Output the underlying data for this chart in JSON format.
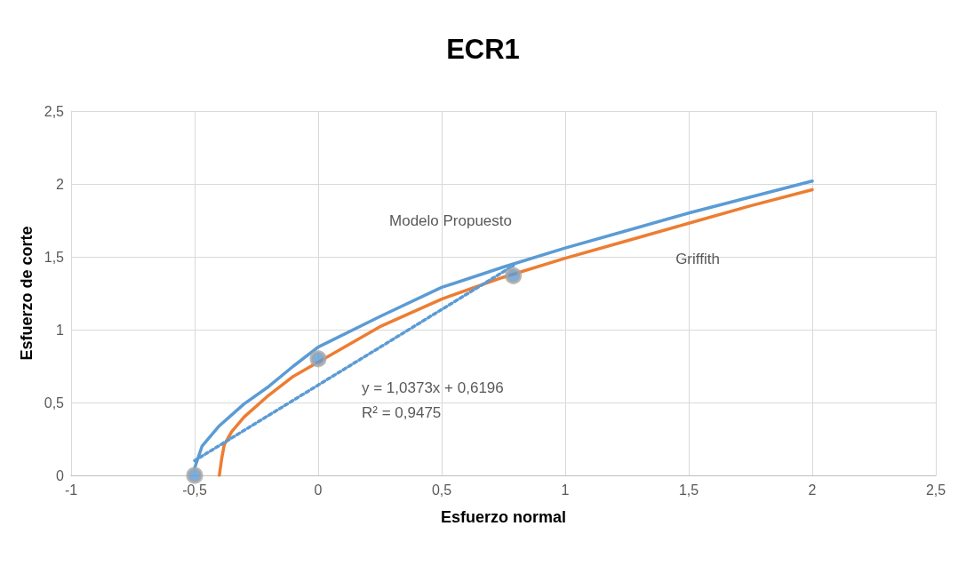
{
  "chart_data": {
    "type": "line",
    "title": "ECR1",
    "xlabel": "Esfuerzo normal",
    "ylabel": "Esfuerzo de corte",
    "xlim": [
      -1,
      2.5
    ],
    "xticks": [
      -1,
      {
        "value": -0.5,
        "label": "-0,5"
      },
      0,
      {
        "value": 0.5,
        "label": "0,5"
      },
      1,
      {
        "value": 1.5,
        "label": "1,5"
      },
      2,
      {
        "value": 2.5,
        "label": "2,5"
      }
    ],
    "ylim": [
      0,
      2.5
    ],
    "yticks": [
      0,
      {
        "value": 0.5,
        "label": "0,5"
      },
      1,
      {
        "value": 1.5,
        "label": "1,5"
      },
      2,
      {
        "value": 2.5,
        "label": "2,5"
      }
    ],
    "grid": true,
    "legend": false,
    "marker": "none",
    "series": [
      {
        "name": "Modelo Propuesto",
        "color": "#5b9bd5",
        "x": [
          -0.5,
          -0.47,
          -0.4,
          -0.3,
          -0.2,
          -0.1,
          0,
          0.25,
          0.5,
          0.75,
          1,
          1.25,
          1.5,
          1.75,
          2
        ],
        "values": [
          0.05,
          0.2,
          0.34,
          0.49,
          0.61,
          0.75,
          0.88,
          1.09,
          1.29,
          1.43,
          1.56,
          1.68,
          1.8,
          1.91,
          2.02
        ]
      },
      {
        "name": "Griffith",
        "color": "#ed7d31",
        "x": [
          -0.4,
          -0.39,
          -0.38,
          -0.35,
          -0.3,
          -0.2,
          -0.1,
          0.25,
          0.5,
          0.75,
          1,
          1.25,
          1.5,
          1.75,
          2
        ],
        "values": [
          0,
          0.12,
          0.21,
          0.3,
          0.4,
          0.55,
          0.68,
          1.02,
          1.21,
          1.36,
          1.49,
          1.61,
          1.73,
          1.85,
          1.96
        ]
      },
      {
        "color": "#5b9bd5",
        "line_style": "dotted",
        "x": [
          -0.5,
          0.79
        ],
        "values": [
          0.101,
          1.439
        ]
      },
      {
        "type": "scatter",
        "color": "#a5a5a5",
        "marker": "circle",
        "x": [
          -0.5,
          0,
          0.79
        ],
        "values": [
          0,
          0.8,
          1.37
        ]
      }
    ],
    "annotations": [
      "y = 1,0373x + 0,6196",
      "R² = 0,9475"
    ]
  }
}
